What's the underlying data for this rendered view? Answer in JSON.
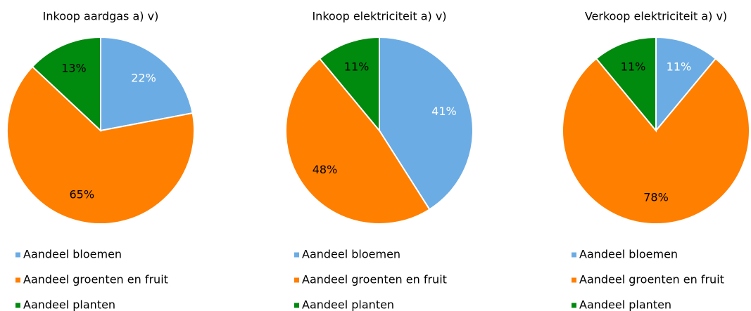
{
  "chart_data": [
    {
      "type": "pie",
      "title": "Inkoop aardgas a) v)",
      "categories": [
        "Aandeel bloemen",
        "Aandeel groenten en fruit",
        "Aandeel planten"
      ],
      "values": [
        22,
        65,
        13
      ],
      "value_labels": [
        "22%",
        "65%",
        "13%"
      ],
      "colors": [
        "#6cace4",
        "#ff7f00",
        "#008a0e"
      ]
    },
    {
      "type": "pie",
      "title": "Inkoop elektriciteit a) v)",
      "categories": [
        "Aandeel bloemen",
        "Aandeel groenten en fruit",
        "Aandeel planten"
      ],
      "values": [
        41,
        48,
        11
      ],
      "value_labels": [
        "41%",
        "48%",
        "11%"
      ],
      "colors": [
        "#6cace4",
        "#ff7f00",
        "#008a0e"
      ]
    },
    {
      "type": "pie",
      "title": "Verkoop elektriciteit a) v)",
      "categories": [
        "Aandeel bloemen",
        "Aandeel groenten en fruit",
        "Aandeel planten"
      ],
      "values": [
        11,
        78,
        11
      ],
      "value_labels": [
        "11%",
        "78%",
        "11%"
      ],
      "colors": [
        "#6cace4",
        "#ff7f00",
        "#008a0e"
      ]
    }
  ]
}
